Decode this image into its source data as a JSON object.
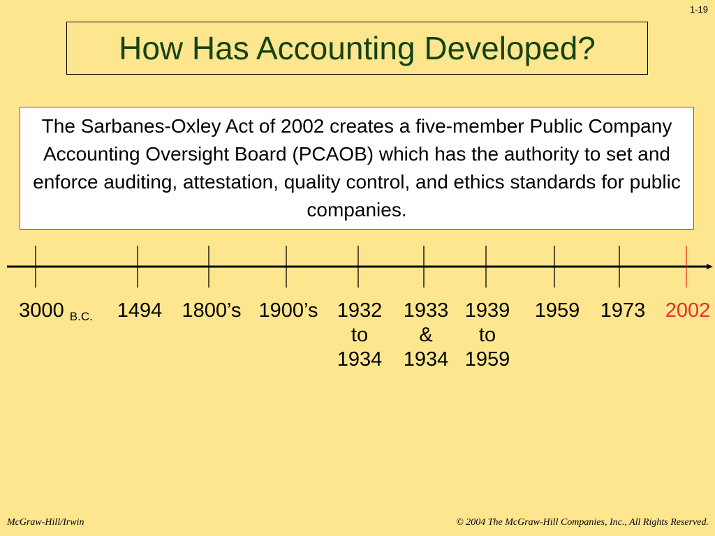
{
  "slide_number": "1-19",
  "title": "How Has Accounting Developed?",
  "body_text": "The Sarbanes-Oxley Act of 2002 creates a five-member Public Company Accounting Oversight Board (PCAOB) which has the authority to set and enforce auditing, attestation, quality control, and ethics standards for public companies.",
  "timeline": {
    "labels": [
      {
        "main": "3000",
        "sub": "B.C."
      },
      {
        "line1": "1494"
      },
      {
        "line1": "1800’s"
      },
      {
        "line1": "1900’s"
      },
      {
        "line1": "1932",
        "line2": "to",
        "line3": "1934"
      },
      {
        "line1": "1933",
        "line2": "&",
        "line3": "1934"
      },
      {
        "line1": "1939",
        "line2": "to",
        "line3": "1959"
      },
      {
        "line1": "1959"
      },
      {
        "line1": "1973"
      },
      {
        "line1": "2002"
      }
    ],
    "highlight_color": "#e2302a"
  },
  "footer": {
    "left": "McGraw-Hill/Irwin",
    "right": "© 2004 The McGraw-Hill Companies, Inc., All Rights Reserved."
  }
}
